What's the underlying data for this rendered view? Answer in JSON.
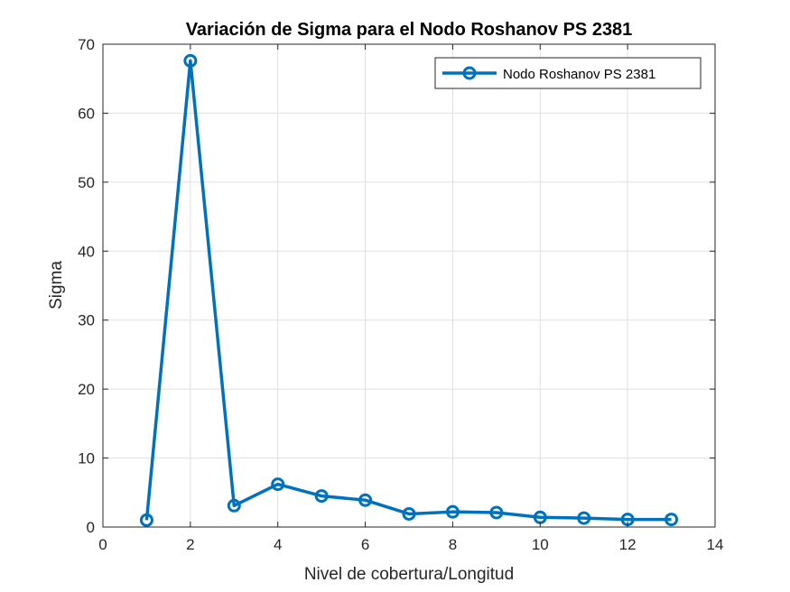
{
  "chart_data": {
    "type": "line",
    "title": "Variación de Sigma para el Nodo Roshanov PS 2381",
    "xlabel": "Nivel de cobertura/Longitud",
    "ylabel": "Sigma",
    "xlim": [
      0,
      14
    ],
    "ylim": [
      0,
      70
    ],
    "xticks": [
      0,
      2,
      4,
      6,
      8,
      10,
      12,
      14
    ],
    "yticks": [
      0,
      10,
      20,
      30,
      40,
      50,
      60,
      70
    ],
    "grid": true,
    "legend_position": "top-right",
    "series": [
      {
        "name": "Nodo Roshanov PS 2381",
        "color": "#0072BD",
        "marker": "circle",
        "x": [
          1,
          2,
          3,
          4,
          5,
          6,
          7,
          8,
          9,
          10,
          11,
          12,
          13
        ],
        "y": [
          1.0,
          67.6,
          3.1,
          6.2,
          4.5,
          3.9,
          1.9,
          2.2,
          2.1,
          1.4,
          1.3,
          1.1,
          1.1
        ]
      }
    ]
  }
}
